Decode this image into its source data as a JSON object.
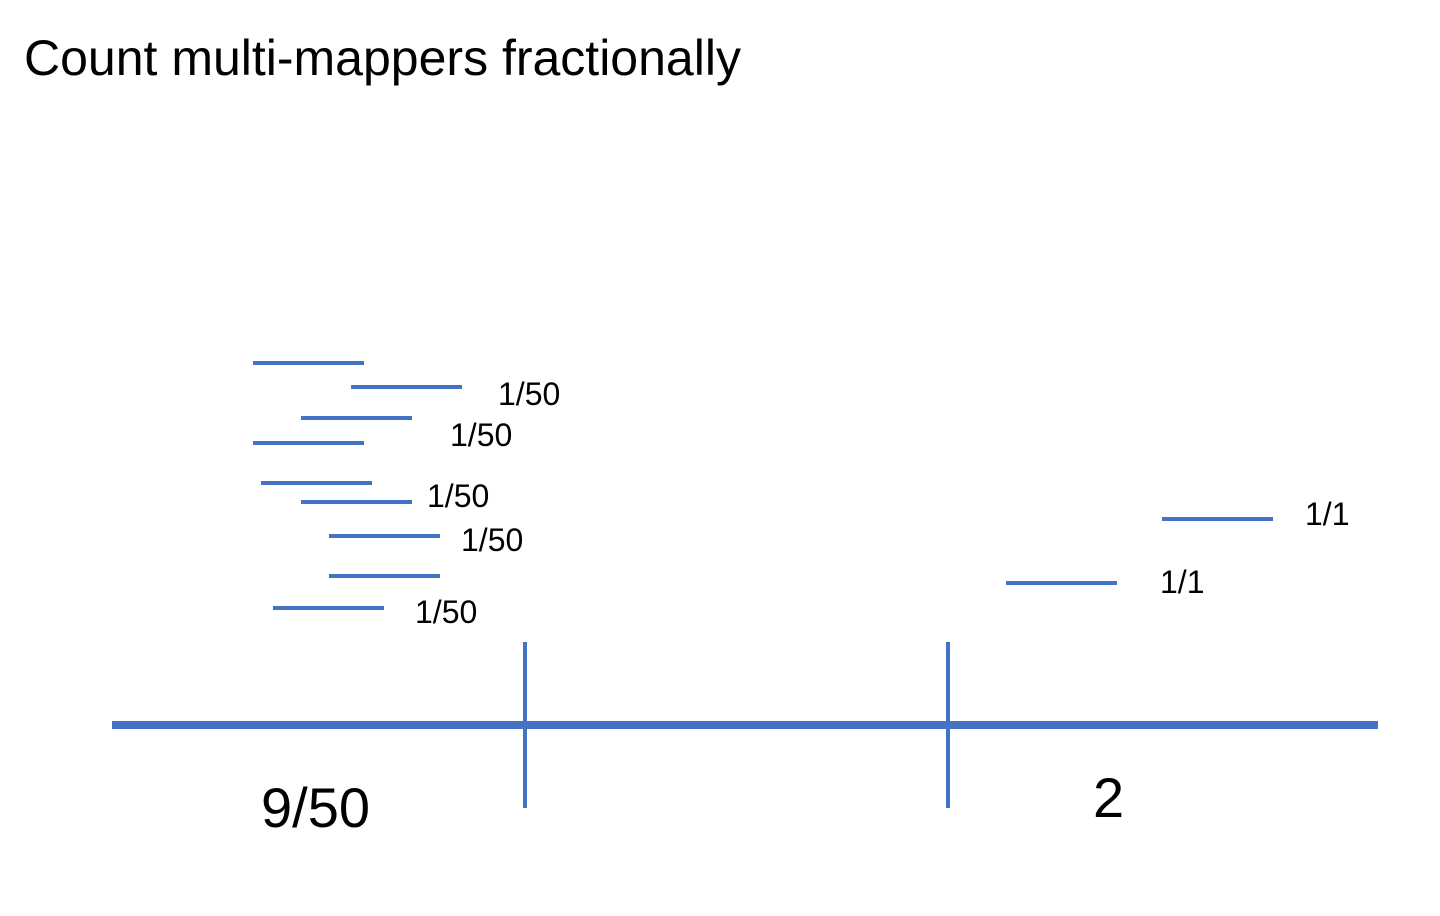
{
  "slide": {
    "title": "Count multi-mappers fractionally"
  },
  "colors": {
    "line": "#4472C4",
    "text": "#000000",
    "background": "#FFFFFF"
  },
  "diagram": {
    "left_feature": {
      "count_label": "9/50",
      "weight_labels": [
        "1/50",
        "1/50",
        "1/50",
        "1/50",
        "1/50"
      ],
      "read_count": 9
    },
    "right_feature": {
      "count_label": "2",
      "weight_labels": [
        "1/1",
        "1/1"
      ],
      "read_count": 2
    }
  }
}
